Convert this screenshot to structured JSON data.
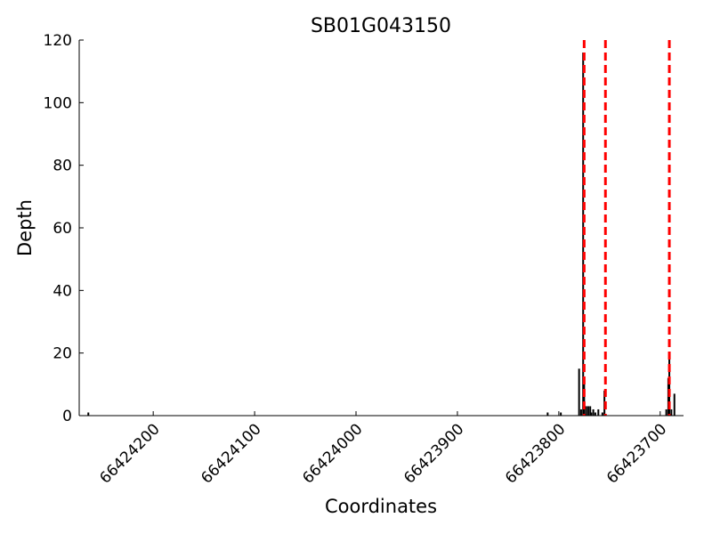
{
  "chart_data": {
    "type": "bar",
    "title": "SB01G043150",
    "xlabel": "Coordinates",
    "ylabel": "Depth",
    "x": [
      66424264,
      66423811,
      66423798,
      66423780,
      66423778,
      66423776,
      66423775,
      66423773,
      66423771,
      66423769,
      66423768,
      66423766,
      66423764,
      66423761,
      66423757,
      66423755,
      66423694,
      66423692,
      66423691,
      66423689,
      66423686
    ],
    "values": [
      1,
      1,
      1,
      15,
      2,
      116,
      10,
      3,
      3,
      3,
      1,
      2,
      1,
      2,
      1,
      8,
      2,
      12,
      20,
      2,
      7
    ],
    "color": "#000000",
    "vlines": [
      66423775,
      66423754,
      66423691
    ],
    "vline_color": "#ff0000",
    "xlim": [
      66424273,
      66423677
    ],
    "xticks": [
      66424200,
      66424100,
      66424000,
      66423900,
      66423800,
      66423700
    ],
    "ylim": [
      0,
      120
    ],
    "yticks": [
      0,
      20,
      40,
      60,
      80,
      100,
      120
    ]
  }
}
